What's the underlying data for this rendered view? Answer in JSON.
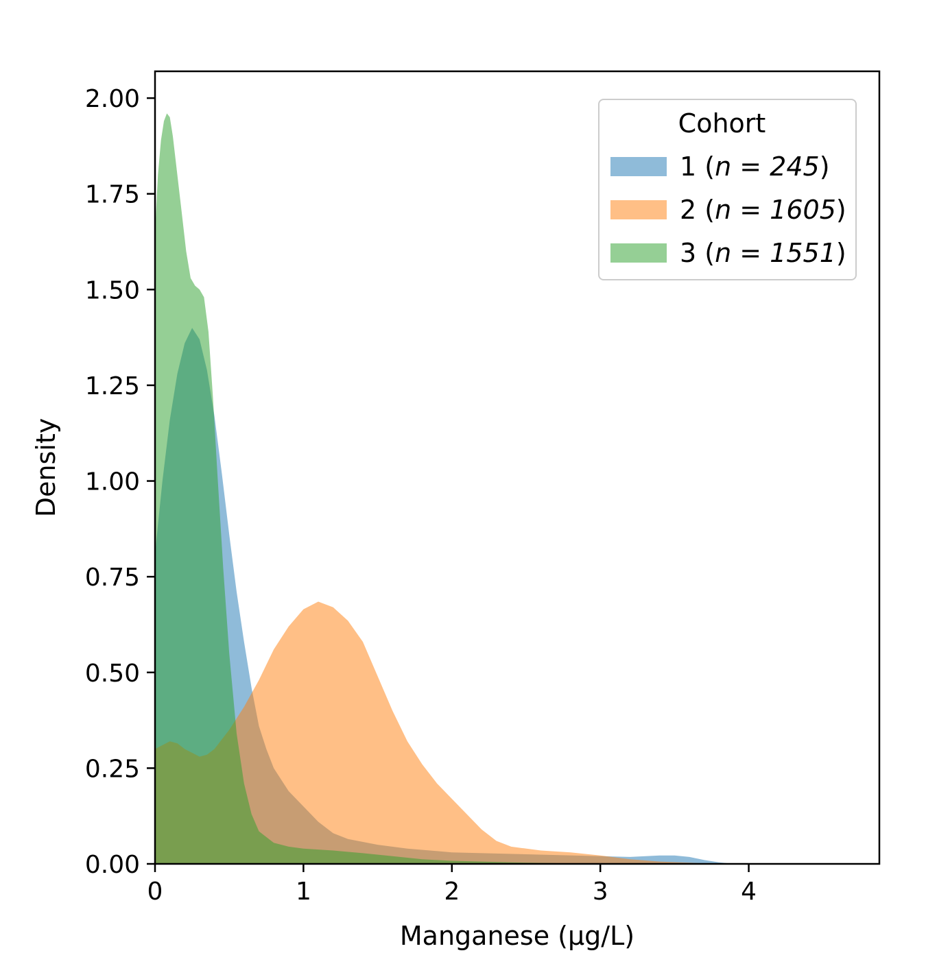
{
  "chart_data": {
    "type": "area",
    "title": "",
    "xlabel": "Manganese (µg/L)",
    "ylabel": "Density",
    "xlim": [
      0,
      4.88
    ],
    "ylim": [
      0,
      2.07
    ],
    "x_ticks": [
      0,
      1,
      2,
      3,
      4
    ],
    "x_tick_labels": [
      "0",
      "1",
      "2",
      "3",
      "4"
    ],
    "y_ticks": [
      0,
      0.25,
      0.5,
      0.75,
      1.0,
      1.25,
      1.5,
      1.75,
      2.0
    ],
    "y_tick_labels": [
      "0.00",
      "0.25",
      "0.50",
      "0.75",
      "1.00",
      "1.25",
      "1.50",
      "1.75",
      "2.00"
    ],
    "grid": false,
    "legend": {
      "title": "Cohort",
      "placement": "top-right"
    },
    "series": [
      {
        "name": "1 (n = 245)",
        "label_prefix": "1 (",
        "label_italic": "n = 245",
        "label_suffix": ")",
        "color": "#1f77b4",
        "opacity": 0.5,
        "points": [
          [
            0.0,
            0.81
          ],
          [
            0.05,
            1.0
          ],
          [
            0.1,
            1.16
          ],
          [
            0.15,
            1.28
          ],
          [
            0.2,
            1.36
          ],
          [
            0.25,
            1.4
          ],
          [
            0.3,
            1.37
          ],
          [
            0.35,
            1.29
          ],
          [
            0.4,
            1.17
          ],
          [
            0.45,
            1.02
          ],
          [
            0.5,
            0.86
          ],
          [
            0.55,
            0.71
          ],
          [
            0.6,
            0.58
          ],
          [
            0.65,
            0.46
          ],
          [
            0.7,
            0.36
          ],
          [
            0.75,
            0.3
          ],
          [
            0.8,
            0.25
          ],
          [
            0.9,
            0.19
          ],
          [
            1.0,
            0.15
          ],
          [
            1.1,
            0.11
          ],
          [
            1.2,
            0.08
          ],
          [
            1.3,
            0.065
          ],
          [
            1.5,
            0.05
          ],
          [
            1.7,
            0.04
          ],
          [
            2.0,
            0.03
          ],
          [
            2.5,
            0.025
          ],
          [
            3.0,
            0.02
          ],
          [
            3.2,
            0.018
          ],
          [
            3.4,
            0.022
          ],
          [
            3.5,
            0.022
          ],
          [
            3.6,
            0.018
          ],
          [
            3.7,
            0.01
          ],
          [
            3.8,
            0.004
          ],
          [
            3.9,
            0.0
          ]
        ]
      },
      {
        "name": "2 (n = 1605)",
        "label_prefix": "2 (",
        "label_italic": "n = 1605",
        "label_suffix": ")",
        "color": "#ff7f0e",
        "opacity": 0.5,
        "points": [
          [
            0.0,
            0.3
          ],
          [
            0.05,
            0.31
          ],
          [
            0.1,
            0.32
          ],
          [
            0.15,
            0.315
          ],
          [
            0.2,
            0.3
          ],
          [
            0.25,
            0.29
          ],
          [
            0.3,
            0.28
          ],
          [
            0.35,
            0.285
          ],
          [
            0.4,
            0.3
          ],
          [
            0.5,
            0.35
          ],
          [
            0.6,
            0.41
          ],
          [
            0.7,
            0.48
          ],
          [
            0.8,
            0.56
          ],
          [
            0.9,
            0.62
          ],
          [
            1.0,
            0.665
          ],
          [
            1.1,
            0.685
          ],
          [
            1.2,
            0.67
          ],
          [
            1.3,
            0.635
          ],
          [
            1.4,
            0.58
          ],
          [
            1.5,
            0.49
          ],
          [
            1.6,
            0.4
          ],
          [
            1.7,
            0.32
          ],
          [
            1.8,
            0.26
          ],
          [
            1.9,
            0.21
          ],
          [
            2.0,
            0.17
          ],
          [
            2.1,
            0.13
          ],
          [
            2.2,
            0.09
          ],
          [
            2.3,
            0.06
          ],
          [
            2.4,
            0.045
          ],
          [
            2.6,
            0.035
          ],
          [
            2.8,
            0.03
          ],
          [
            3.0,
            0.022
          ],
          [
            3.2,
            0.012
          ],
          [
            3.4,
            0.006
          ],
          [
            3.6,
            0.003
          ],
          [
            3.8,
            0.0
          ]
        ]
      },
      {
        "name": "3 (n = 1551)",
        "label_prefix": "3 (",
        "label_italic": "n = 1551",
        "label_suffix": ")",
        "color": "#2ca02c",
        "opacity": 0.5,
        "points": [
          [
            0.0,
            1.65
          ],
          [
            0.02,
            1.8
          ],
          [
            0.04,
            1.89
          ],
          [
            0.06,
            1.94
          ],
          [
            0.08,
            1.96
          ],
          [
            0.1,
            1.95
          ],
          [
            0.12,
            1.9
          ],
          [
            0.15,
            1.8
          ],
          [
            0.18,
            1.7
          ],
          [
            0.21,
            1.6
          ],
          [
            0.24,
            1.53
          ],
          [
            0.27,
            1.51
          ],
          [
            0.3,
            1.5
          ],
          [
            0.33,
            1.48
          ],
          [
            0.36,
            1.39
          ],
          [
            0.39,
            1.22
          ],
          [
            0.42,
            1.02
          ],
          [
            0.46,
            0.77
          ],
          [
            0.5,
            0.55
          ],
          [
            0.55,
            0.34
          ],
          [
            0.6,
            0.21
          ],
          [
            0.65,
            0.13
          ],
          [
            0.7,
            0.085
          ],
          [
            0.8,
            0.055
          ],
          [
            0.9,
            0.045
          ],
          [
            1.0,
            0.04
          ],
          [
            1.2,
            0.035
          ],
          [
            1.4,
            0.028
          ],
          [
            1.6,
            0.02
          ],
          [
            1.8,
            0.012
          ],
          [
            2.0,
            0.008
          ],
          [
            2.4,
            0.004
          ],
          [
            3.0,
            0.0
          ]
        ]
      }
    ]
  }
}
